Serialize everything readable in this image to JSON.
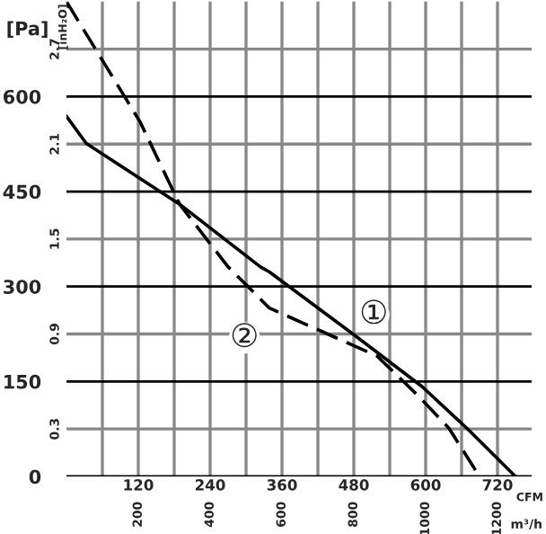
{
  "chart_data": {
    "type": "line",
    "xlabel": "CFM",
    "ylabel": "[Pa]",
    "y2label": "[inH₂O]",
    "x2label": "m³/h",
    "xlim": [
      0,
      777
    ],
    "xticks": [
      {
        "value": 60,
        "label": null
      },
      120,
      {
        "value": 180,
        "label": null
      },
      240,
      {
        "value": 300,
        "label": null
      },
      360,
      {
        "value": 420,
        "label": null
      },
      480,
      {
        "value": 540,
        "label": null
      },
      600,
      {
        "value": 660,
        "label": null
      },
      720
    ],
    "ylim": [
      0,
      750
    ],
    "yticks": [
      0,
      150,
      300,
      450,
      600
    ],
    "y2lim": [
      0,
      3.0
    ],
    "y2ticks": [
      0.3,
      0.9,
      1.5,
      2.1,
      2.7
    ],
    "x2lim": [
      0,
      1295
    ],
    "x2ticks": [
      200,
      400,
      600,
      800,
      1000,
      1200
    ],
    "grid": true,
    "legend": false,
    "series": [
      {
        "name": "①",
        "color": "#000000",
        "line_style": "solid",
        "x": [
          0,
          33,
          189,
          324,
          339,
          480,
          594,
          669,
          750
        ],
        "values": [
          569,
          526,
          430,
          331,
          323,
          224,
          142,
          76,
          0
        ]
      },
      {
        "name": "②",
        "color": "#000000",
        "line_style": "dashed",
        "x": [
          0,
          123,
          189,
          270,
          300,
          339,
          519,
          588,
          639,
          690
        ],
        "values": [
          750,
          560,
          430,
          331,
          303,
          266,
          190,
          127,
          76,
          0
        ]
      }
    ]
  }
}
